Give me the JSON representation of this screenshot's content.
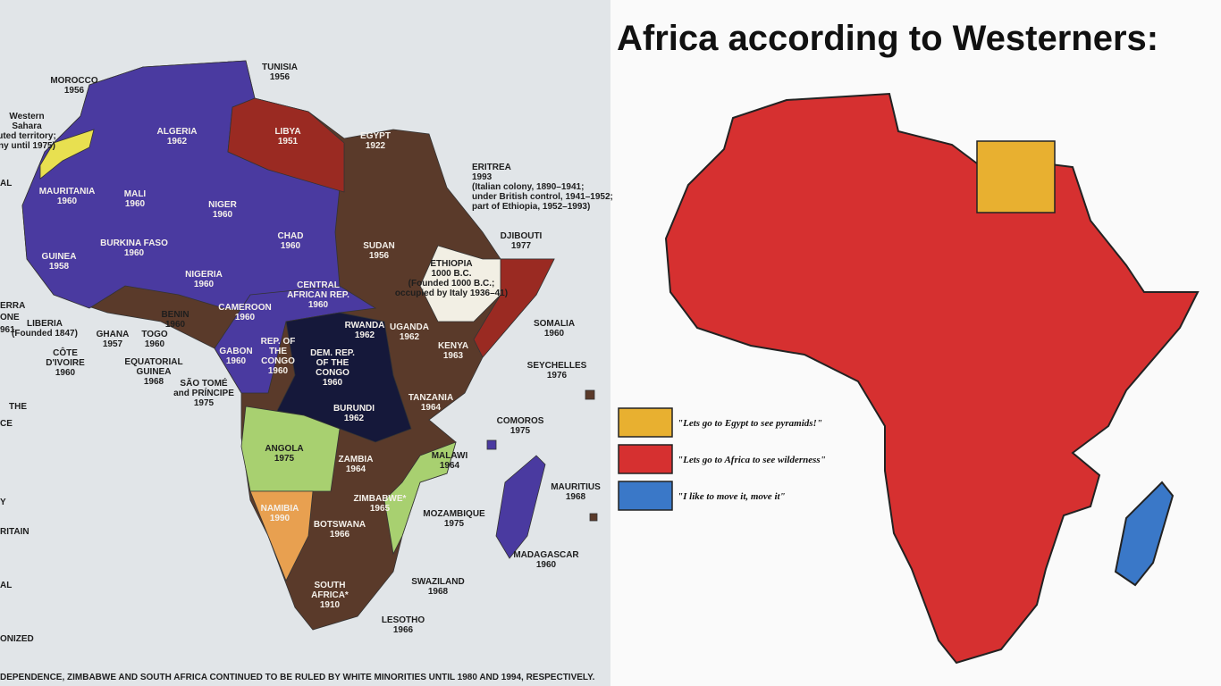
{
  "left_map": {
    "labels": [
      [
        "MOROCCO",
        "1956"
      ],
      [
        "Western",
        "Sahara",
        "uted territory;",
        "ny until 1975)"
      ],
      [
        "TUNISIA",
        "1956"
      ],
      [
        "ALGERIA",
        "1962"
      ],
      [
        "LIBYA",
        "1951"
      ],
      [
        "EGYPT",
        "1922"
      ],
      [
        "ERITREA",
        "1993",
        "(Italian colony, 1890–1941;",
        "under British control, 1941–1952;",
        "part of Ethiopia, 1952–1993)"
      ],
      [
        "MAURITANIA",
        "1960"
      ],
      [
        "MALI",
        "1960"
      ],
      [
        "NIGER",
        "1960"
      ],
      [
        "CHAD",
        "1960"
      ],
      [
        "SUDAN",
        "1956"
      ],
      [
        "DJIBOUTI",
        "1977"
      ],
      [
        "ETHIOPIA",
        "1000 B.C.",
        "(Founded 1000 B.C.;",
        "occupied by Italy 1936–41)"
      ],
      [
        "BURKINA FASO",
        "1960"
      ],
      [
        "GUINEA",
        "1958"
      ],
      [
        "NIGERIA",
        "1960"
      ],
      [
        "CENTRAL",
        "AFRICAN REP.",
        "1960"
      ],
      [
        "SOMALIA",
        "1960"
      ],
      [
        "LIBERIA",
        "(Founded 1847)"
      ],
      [
        "GHANA",
        "1957"
      ],
      [
        "TOGO",
        "1960"
      ],
      [
        "BENIN",
        "1960"
      ],
      [
        "CAMEROON",
        "1960"
      ],
      [
        "RWANDA",
        "1962"
      ],
      [
        "UGANDA",
        "1962"
      ],
      [
        "KENYA",
        "1963"
      ],
      [
        "CÔTE",
        "D'IVOIRE",
        "1960"
      ],
      [
        "EQUATORIAL",
        "GUINEA",
        "1968"
      ],
      [
        "GABON",
        "1960"
      ],
      [
        "REP. OF",
        "THE",
        "CONGO",
        "1960"
      ],
      [
        "DEM. REP.",
        "OF THE",
        "CONGO",
        "1960"
      ],
      [
        "SEYCHELLES",
        "1976"
      ],
      [
        "SÃO TOMÉ",
        "and PRÍNCIPE",
        "1975"
      ],
      [
        "BURUNDI",
        "1962"
      ],
      [
        "TANZANIA",
        "1964"
      ],
      [
        "COMOROS",
        "1975"
      ],
      [
        "ANGOLA",
        "1975"
      ],
      [
        "ZAMBIA",
        "1964"
      ],
      [
        "MALAWI",
        "1964"
      ],
      [
        "MAURITIUS",
        "1968"
      ],
      [
        "ZIMBABWE*",
        "1965"
      ],
      [
        "MOZAMBIQUE",
        "1975"
      ],
      [
        "NAMIBIA",
        "1990"
      ],
      [
        "BOTSWANA",
        "1966"
      ],
      [
        "MADAGASCAR",
        "1960"
      ],
      [
        "SWAZILAND",
        "1968"
      ],
      [
        "SOUTH",
        "AFRICA*",
        "1910"
      ],
      [
        "LESOTHO",
        "1966"
      ]
    ],
    "edge_text": [
      "AL",
      "ERRA",
      "ONE",
      "961",
      "THE",
      "CE",
      "Y",
      "RITAIN",
      "AL",
      "ONIZED"
    ],
    "footnote": "DEPENDENCE, ZIMBABWE AND SOUTH AFRICA CONTINUED TO BE RULED BY WHITE MINORITIES UNTIL 1980 AND 1994, RESPECTIVELY."
  },
  "right_map": {
    "title": "Africa according to Westerners:",
    "legend": [
      {
        "color": "#e8b030",
        "text": "\"Lets go to Egypt to see pyramids!\""
      },
      {
        "color": "#d63030",
        "text": "\"Lets go to Africa to see wilderness\""
      },
      {
        "color": "#3a78c8",
        "text": "\"I like to move it, move it\""
      }
    ]
  }
}
